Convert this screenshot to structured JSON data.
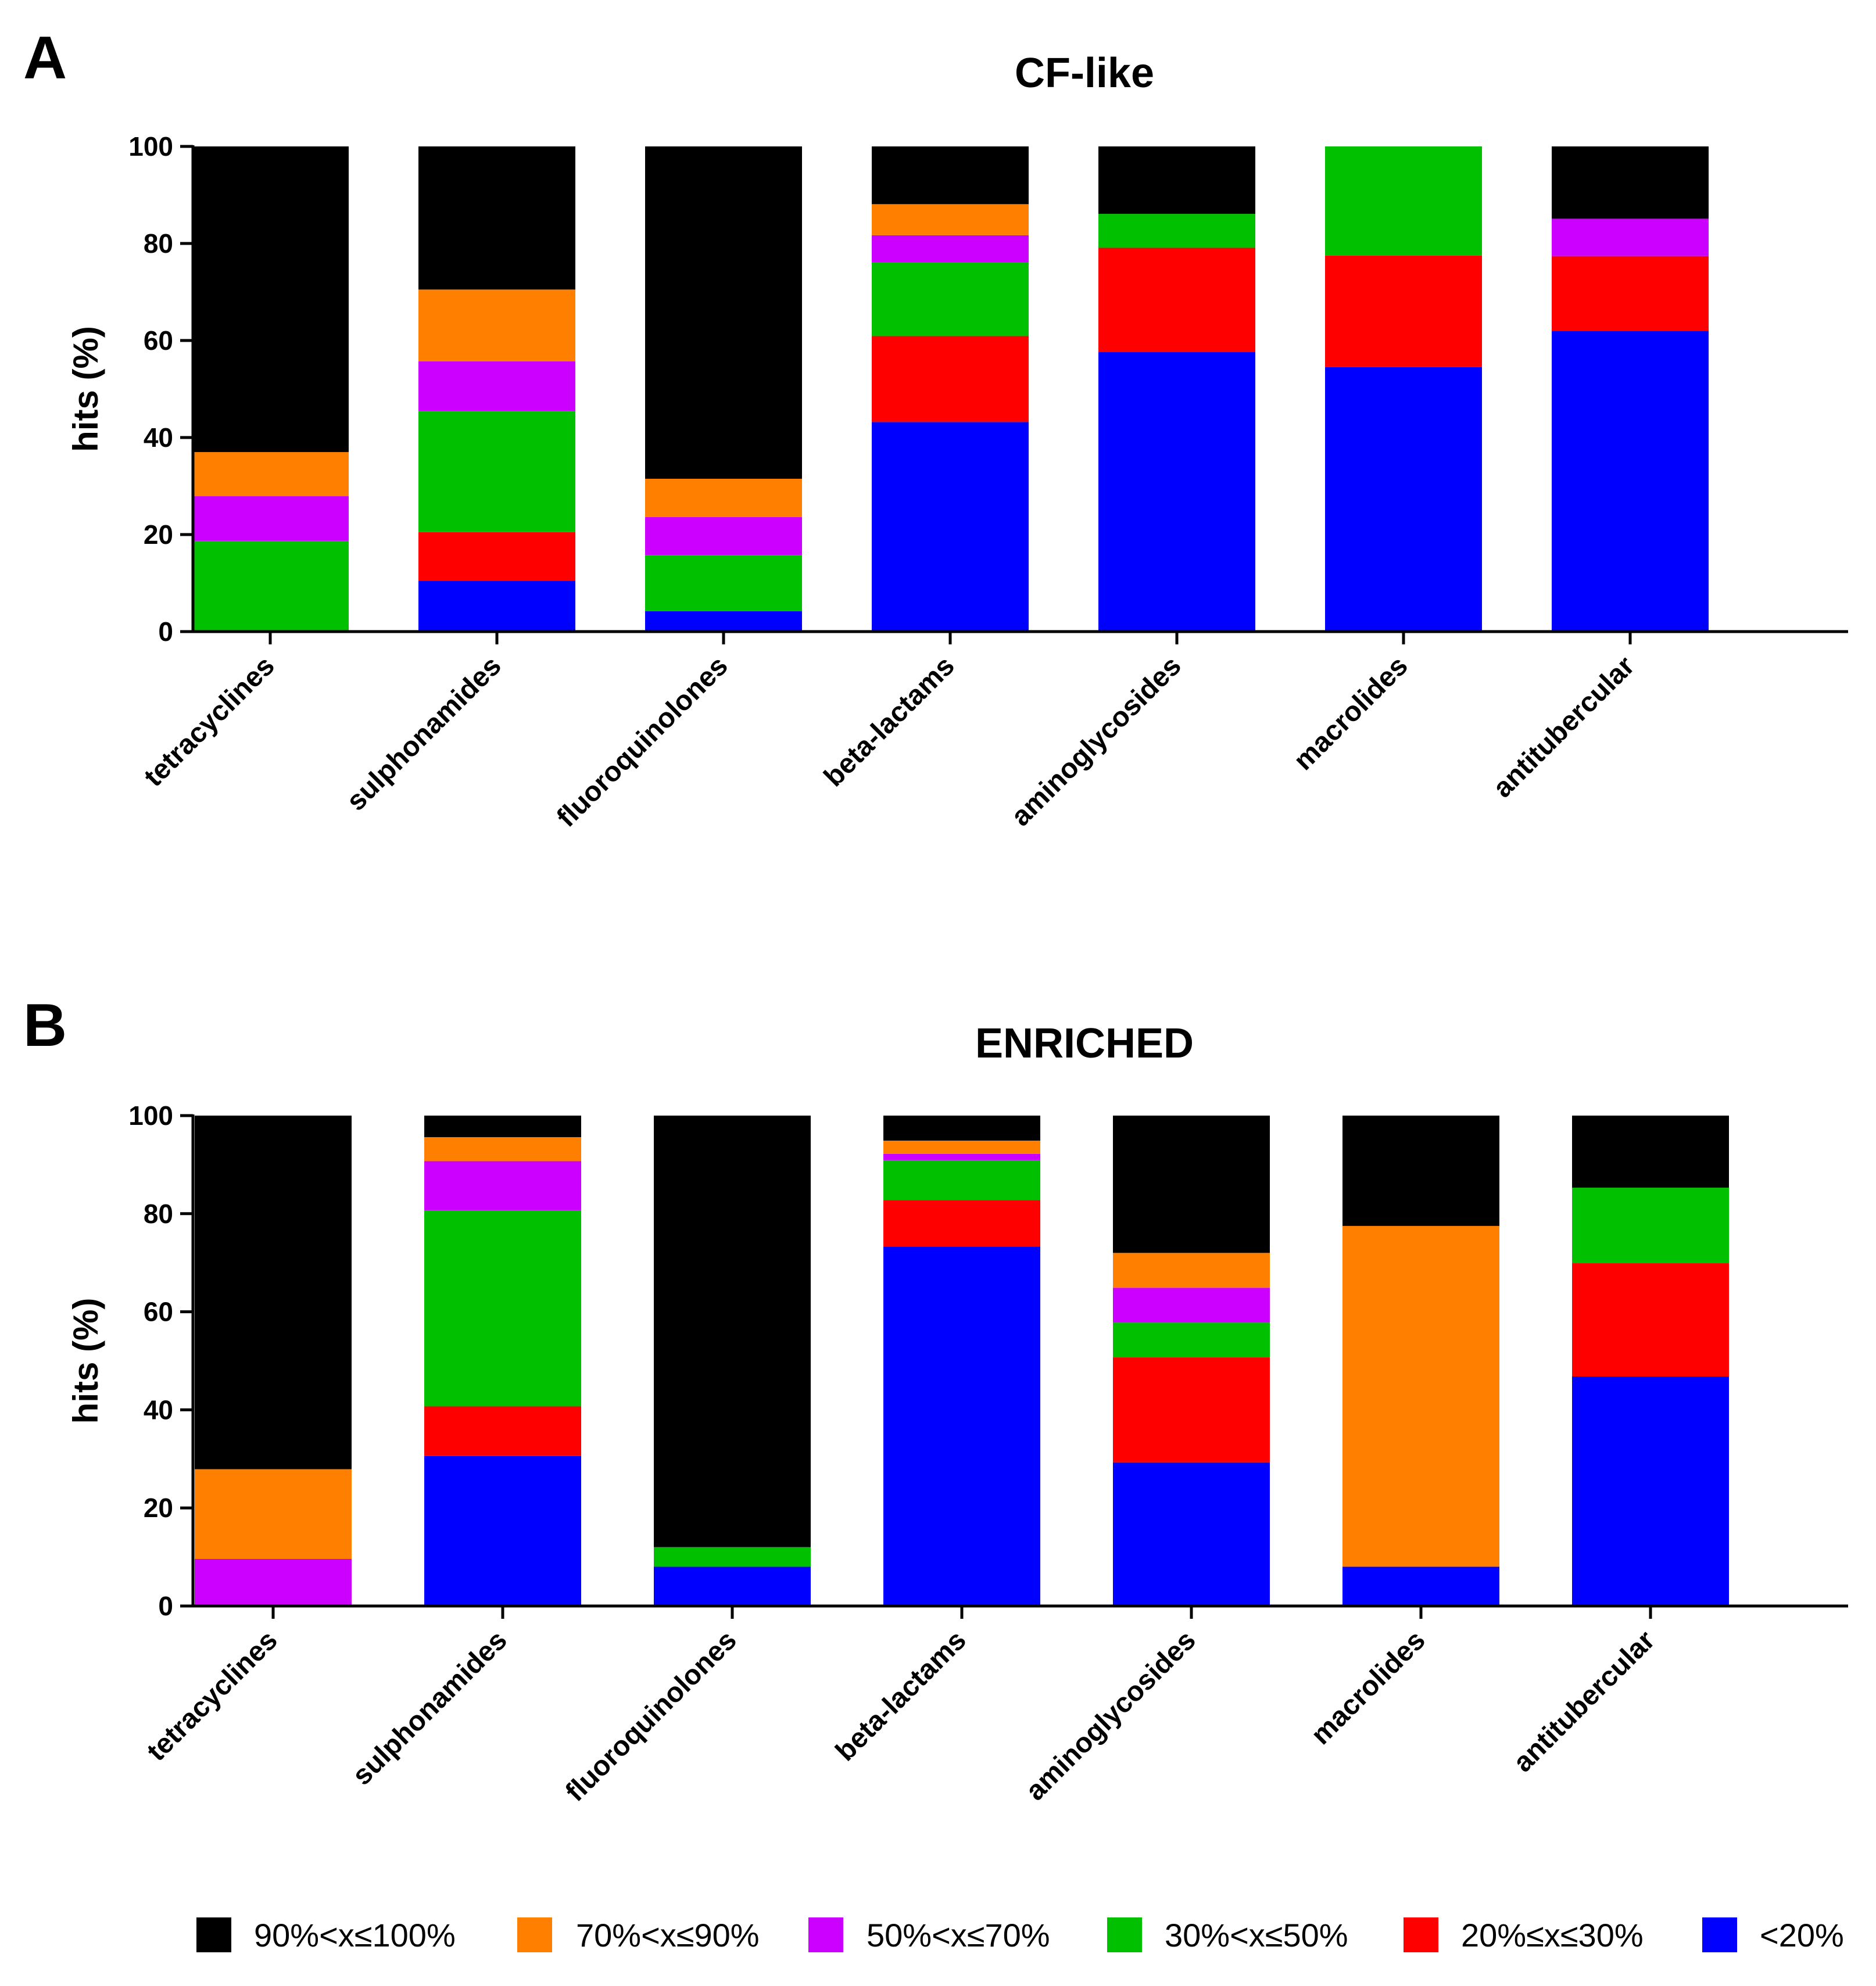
{
  "legend": [
    {
      "key": "s90_100",
      "label": "90%<x≤100%",
      "color": "#000000"
    },
    {
      "key": "s70_90",
      "label": "70%<x≤90%",
      "color": "#FF8000"
    },
    {
      "key": "s50_70",
      "label": "50%<x≤70%",
      "color": "#CC00FF"
    },
    {
      "key": "s30_50",
      "label": "30%<x≤50%",
      "color": "#00C000"
    },
    {
      "key": "s20_30",
      "label": "20%≤x≤30%",
      "color": "#FF0000"
    },
    {
      "key": "s0_20",
      "label": "<20%",
      "color": "#0000FF"
    }
  ],
  "chart_data": [
    {
      "panel": "A",
      "type": "bar",
      "stacked": true,
      "title": "CF-like",
      "ylabel": "hits (%)",
      "xlabel": "",
      "ylim": [
        0,
        100
      ],
      "yticks": [
        0,
        20,
        40,
        60,
        80,
        100
      ],
      "categories": [
        "tetracyclines",
        "sulphonamides",
        "fluoroquinolones",
        "beta-lactams",
        "aminoglycosides",
        "macrolides",
        "antitubercular"
      ],
      "series": [
        {
          "name": "<20%",
          "color": "#0000FF",
          "values": [
            0,
            10.5,
            4.2,
            43.2,
            57.6,
            54.5,
            62.0
          ]
        },
        {
          "name": "20%≤x≤30%",
          "color": "#FF0000",
          "values": [
            0,
            10.0,
            0,
            17.7,
            21.5,
            23.0,
            15.4
          ]
        },
        {
          "name": "30%<x≤50%",
          "color": "#00C000",
          "values": [
            18.7,
            25.0,
            11.6,
            15.2,
            7.0,
            22.5,
            0
          ]
        },
        {
          "name": "50%<x≤70%",
          "color": "#CC00FF",
          "values": [
            9.2,
            10.2,
            7.8,
            5.6,
            0,
            0,
            7.7
          ]
        },
        {
          "name": "70%<x≤90%",
          "color": "#FF8000",
          "values": [
            9.1,
            14.8,
            7.9,
            6.4,
            0,
            0,
            0
          ]
        },
        {
          "name": "90%<x≤100%",
          "color": "#000000",
          "values": [
            63.0,
            29.5,
            68.5,
            11.9,
            13.9,
            0,
            14.9
          ]
        }
      ]
    },
    {
      "panel": "B",
      "type": "bar",
      "stacked": true,
      "title": "ENRICHED",
      "ylabel": "hits (%)",
      "xlabel": "",
      "ylim": [
        0,
        100
      ],
      "yticks": [
        0,
        20,
        40,
        60,
        80,
        100
      ],
      "categories": [
        "tetracyclines",
        "sulphonamides",
        "fluoroquinolones",
        "beta-lactams",
        "aminoglycosides",
        "macrolides",
        "antitubercular"
      ],
      "series": [
        {
          "name": "<20%",
          "color": "#0000FF",
          "values": [
            0,
            30.6,
            8.0,
            73.3,
            29.3,
            8.0,
            46.8
          ]
        },
        {
          "name": "20%≤x≤30%",
          "color": "#FF0000",
          "values": [
            0,
            10.1,
            0,
            9.5,
            21.4,
            0,
            23.1
          ]
        },
        {
          "name": "30%<x≤50%",
          "color": "#00C000",
          "values": [
            0,
            40.0,
            4.0,
            8.1,
            7.1,
            0,
            15.4
          ]
        },
        {
          "name": "50%<x≤70%",
          "color": "#CC00FF",
          "values": [
            9.6,
            10.0,
            0,
            1.3,
            7.1,
            0,
            0
          ]
        },
        {
          "name": "70%<x≤90%",
          "color": "#FF8000",
          "values": [
            18.3,
            4.9,
            0,
            2.7,
            7.1,
            69.5,
            0
          ]
        },
        {
          "name": "90%<x≤100%",
          "color": "#000000",
          "values": [
            72.1,
            4.4,
            88.0,
            5.1,
            28.0,
            22.5,
            14.7
          ]
        }
      ]
    }
  ]
}
